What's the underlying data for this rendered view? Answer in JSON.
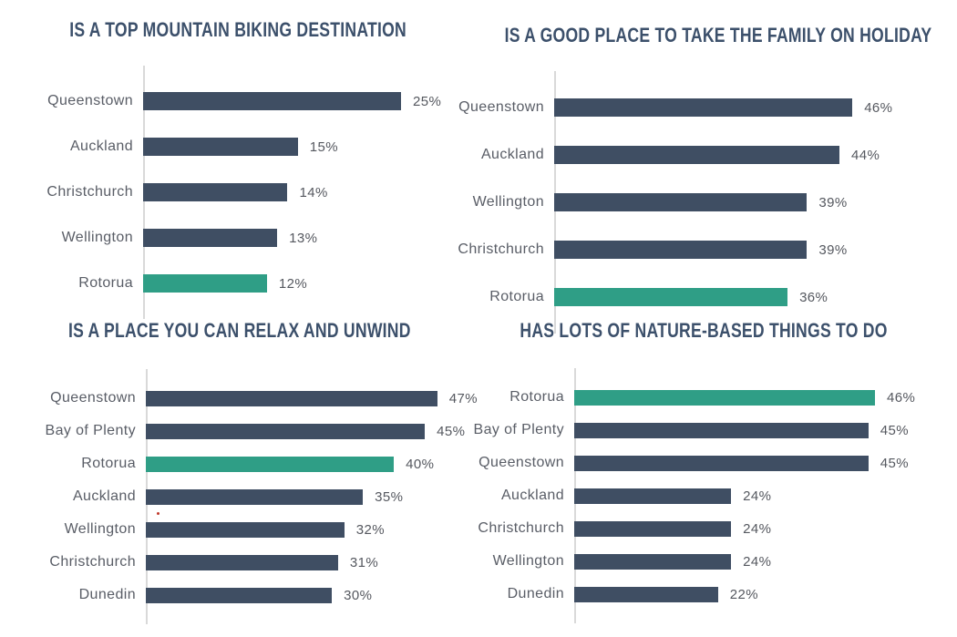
{
  "colors": {
    "bar_default": "#3F4E63",
    "bar_highlight": "#2F9E86",
    "title": "#3C506B",
    "category_label": "#595D66",
    "value_label": "#55585F",
    "axis": "#D9D9D9"
  },
  "chart_data": [
    {
      "type": "bar",
      "orientation": "horizontal",
      "title": "IS A TOP MOUNTAIN BIKING DESTINATION",
      "unit": "%",
      "xlim": [
        0,
        26.5
      ],
      "grid": false,
      "legend": "none",
      "highlight_category": "Rotorua",
      "rows": [
        {
          "label": "Queenstown",
          "value": 25,
          "display": "25%"
        },
        {
          "label": "Auckland",
          "value": 15,
          "display": "15%"
        },
        {
          "label": "Christchurch",
          "value": 14,
          "display": "14%"
        },
        {
          "label": "Wellington",
          "value": 13,
          "display": "13%"
        },
        {
          "label": "Rotorua",
          "value": 12,
          "display": "12%"
        }
      ]
    },
    {
      "type": "bar",
      "orientation": "horizontal",
      "title": "IS A GOOD PLACE TO TAKE THE FAMILY ON HOLIDAY",
      "unit": "%",
      "xlim": [
        0,
        47.8
      ],
      "grid": false,
      "legend": "none",
      "highlight_category": "Rotorua",
      "rows": [
        {
          "label": "Queenstown",
          "value": 46,
          "display": "46%"
        },
        {
          "label": "Auckland",
          "value": 44,
          "display": "44%"
        },
        {
          "label": "Wellington",
          "value": 39,
          "display": "39%"
        },
        {
          "label": "Christchurch",
          "value": 39,
          "display": "39%"
        },
        {
          "label": "Rotorua",
          "value": 36,
          "display": "36%"
        }
      ]
    },
    {
      "type": "bar",
      "orientation": "horizontal",
      "title": "IS A PLACE YOU CAN RELAX AND UNWIND",
      "unit": "%",
      "xlim": [
        0,
        48.5
      ],
      "grid": false,
      "legend": "none",
      "highlight_category": "Rotorua",
      "rows": [
        {
          "label": "Queenstown",
          "value": 47,
          "display": "47%"
        },
        {
          "label": "Bay of Plenty",
          "value": 45,
          "display": "45%"
        },
        {
          "label": "Rotorua",
          "value": 40,
          "display": "40%"
        },
        {
          "label": "Auckland",
          "value": 35,
          "display": "35%"
        },
        {
          "label": "Wellington",
          "value": 32,
          "display": "32%"
        },
        {
          "label": "Christchurch",
          "value": 31,
          "display": "31%"
        },
        {
          "label": "Dunedin",
          "value": 30,
          "display": "30%"
        }
      ]
    },
    {
      "type": "bar",
      "orientation": "horizontal",
      "title": "HAS LOTS OF NATURE-BASED THINGS TO DO",
      "unit": "%",
      "xlim": [
        0,
        47.4
      ],
      "grid": false,
      "legend": "none",
      "highlight_category": "Rotorua",
      "rows": [
        {
          "label": "Rotorua",
          "value": 46,
          "display": "46%"
        },
        {
          "label": "Bay of Plenty",
          "value": 45,
          "display": "45%"
        },
        {
          "label": "Queenstown",
          "value": 45,
          "display": "45%"
        },
        {
          "label": "Auckland",
          "value": 24,
          "display": "24%"
        },
        {
          "label": "Christchurch",
          "value": 24,
          "display": "24%"
        },
        {
          "label": "Wellington",
          "value": 24,
          "display": "24%"
        },
        {
          "label": "Dunedin",
          "value": 22,
          "display": "22%"
        }
      ]
    }
  ]
}
